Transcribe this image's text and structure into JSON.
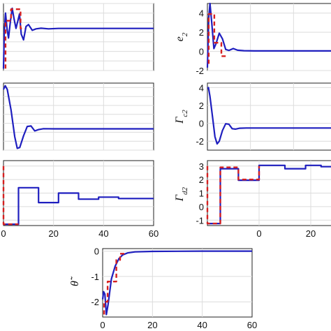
{
  "chart_data": [
    {
      "type": "line",
      "panel": "top-left",
      "xlim": [
        0,
        60
      ],
      "ylim": [
        -2,
        5
      ],
      "xticks": [],
      "yticks": [],
      "grid": true,
      "series": [
        {
          "color": "#1f1fbf",
          "style": "solid",
          "points": [
            [
              0,
              -1.8
            ],
            [
              0.3,
              2
            ],
            [
              0.8,
              4
            ],
            [
              1.4,
              2.4
            ],
            [
              2,
              1.4
            ],
            [
              2.8,
              3.2
            ],
            [
              3.5,
              4.5
            ],
            [
              4.2,
              3.4
            ],
            [
              5,
              2.4
            ],
            [
              6.4,
              3.9
            ],
            [
              7.1,
              1.8
            ],
            [
              8,
              1.2
            ],
            [
              9,
              2.6
            ],
            [
              10,
              2.8
            ],
            [
              11.5,
              2.2
            ],
            [
              13,
              2.35
            ],
            [
              15,
              2.42
            ],
            [
              18,
              2.35
            ],
            [
              22,
              2.4
            ],
            [
              30,
              2.4
            ],
            [
              40,
              2.4
            ],
            [
              50,
              2.4
            ],
            [
              60,
              2.4
            ]
          ]
        },
        {
          "color": "#d62020",
          "style": "dashed",
          "points": [
            [
              0.8,
              -1.8
            ],
            [
              0.8,
              3.2
            ],
            [
              3,
              3.2
            ],
            [
              3,
              4.4
            ],
            [
              6.8,
              4.4
            ],
            [
              6.8,
              2.4
            ],
            [
              8.5,
              2.4
            ]
          ]
        }
      ]
    },
    {
      "type": "line",
      "panel": "top-right",
      "ylabel": "e_2",
      "xlim": [
        0,
        60
      ],
      "ylim": [
        -2,
        5
      ],
      "xticks": [],
      "yticks": [
        -2,
        0,
        2,
        4
      ],
      "grid": true,
      "series": [
        {
          "color": "#1f1fbf",
          "style": "solid",
          "points": [
            [
              0,
              -1.7
            ],
            [
              0.6,
              3.5
            ],
            [
              1.2,
              5
            ],
            [
              2,
              3
            ],
            [
              3,
              0.3
            ],
            [
              4,
              0.8
            ],
            [
              5.5,
              1.9
            ],
            [
              7,
              1.3
            ],
            [
              8.5,
              0.2
            ],
            [
              10,
              0.1
            ],
            [
              12,
              0.3
            ],
            [
              14,
              0.12
            ],
            [
              17,
              0.07
            ],
            [
              22,
              0.05
            ],
            [
              30,
              0.05
            ],
            [
              45,
              0.05
            ],
            [
              60,
              0.05
            ]
          ]
        },
        {
          "color": "#d62020",
          "style": "dashed",
          "points": [
            [
              0.6,
              -1.3
            ],
            [
              0.6,
              3.9
            ],
            [
              3.2,
              3.9
            ],
            [
              3.2,
              0.9
            ],
            [
              6.5,
              0.9
            ],
            [
              6.5,
              -0.5
            ],
            [
              8.5,
              -0.5
            ]
          ]
        }
      ]
    },
    {
      "type": "line",
      "panel": "middle-left",
      "xlim": [
        0,
        60
      ],
      "ylim": [
        -3,
        4.5
      ],
      "xticks": [],
      "yticks": [],
      "grid": true,
      "series": [
        {
          "color": "#1f1fbf",
          "style": "solid",
          "points": [
            [
              0,
              3.8
            ],
            [
              0.7,
              4.2
            ],
            [
              1.5,
              3.8
            ],
            [
              3,
              1.5
            ],
            [
              4.5,
              -1.5
            ],
            [
              5.5,
              -2.8
            ],
            [
              6.5,
              -2.7
            ],
            [
              8,
              -1.4
            ],
            [
              9.5,
              -0.35
            ],
            [
              11,
              -0.3
            ],
            [
              12.5,
              -0.85
            ],
            [
              14,
              -0.7
            ],
            [
              16,
              -0.6
            ],
            [
              20,
              -0.62
            ],
            [
              30,
              -0.62
            ],
            [
              45,
              -0.62
            ],
            [
              60,
              -0.62
            ]
          ]
        }
      ]
    },
    {
      "type": "line",
      "panel": "middle-right",
      "ylabel": "Γ_c2",
      "xlim": [
        0,
        60
      ],
      "ylim": [
        -3,
        4.5
      ],
      "xticks": [],
      "yticks": [
        -2,
        0,
        2,
        4
      ],
      "grid": true,
      "series": [
        {
          "color": "#1f1fbf",
          "style": "solid",
          "points": [
            [
              0,
              3.9
            ],
            [
              0.5,
              4
            ],
            [
              1.2,
              3
            ],
            [
              2.5,
              0.5
            ],
            [
              3.5,
              -1.5
            ],
            [
              4.5,
              -2.3
            ],
            [
              5.5,
              -2
            ],
            [
              7,
              -0.8
            ],
            [
              8.5,
              -0.05
            ],
            [
              10,
              -0.1
            ],
            [
              11.5,
              -0.6
            ],
            [
              13,
              -0.65
            ],
            [
              15,
              -0.55
            ],
            [
              18,
              -0.52
            ],
            [
              25,
              -0.52
            ],
            [
              40,
              -0.52
            ],
            [
              60,
              -0.52
            ]
          ]
        }
      ]
    },
    {
      "type": "line",
      "panel": "bottom-left",
      "xlim": [
        0,
        60
      ],
      "ylim": [
        -1.4,
        3.4
      ],
      "xticks": [
        0,
        20,
        40,
        60
      ],
      "yticks": [],
      "grid": true,
      "series": [
        {
          "color": "#1f1fbf",
          "style": "solid",
          "points": [
            [
              0,
              -1.3
            ],
            [
              6,
              -1.3
            ],
            [
              6,
              1.4
            ],
            [
              14,
              1.4
            ],
            [
              14,
              0.3
            ],
            [
              22,
              0.3
            ],
            [
              22,
              1
            ],
            [
              30,
              1
            ],
            [
              30,
              0.55
            ],
            [
              38,
              0.55
            ],
            [
              38,
              0.7
            ],
            [
              46,
              0.7
            ],
            [
              46,
              0.6
            ],
            [
              60,
              0.6
            ]
          ]
        },
        {
          "color": "#d62020",
          "style": "dashed",
          "points": [
            [
              0,
              3
            ],
            [
              0,
              -1.3
            ],
            [
              6,
              -1.3
            ]
          ]
        }
      ]
    },
    {
      "type": "line",
      "panel": "bottom-right",
      "ylabel": "Γ_d2",
      "xlim": [
        -20,
        30
      ],
      "ylim": [
        -1.4,
        3.4
      ],
      "xticks": [
        0,
        20
      ],
      "yticks": [
        -1,
        0,
        1,
        2,
        3
      ],
      "grid": true,
      "series": [
        {
          "color": "#1f1fbf",
          "style": "solid",
          "points": [
            [
              -20,
              -1.25
            ],
            [
              -15,
              -1.25
            ],
            [
              -15,
              2.8
            ],
            [
              -8,
              2.8
            ],
            [
              -8,
              1.95
            ],
            [
              0,
              1.95
            ],
            [
              0,
              3.05
            ],
            [
              10,
              3.05
            ],
            [
              10,
              2.8
            ],
            [
              18,
              2.8
            ],
            [
              18,
              3.05
            ],
            [
              24,
              3.05
            ],
            [
              24,
              2.95
            ],
            [
              30,
              2.95
            ]
          ]
        },
        {
          "color": "#d62020",
          "style": "dashed",
          "points": [
            [
              -20,
              3
            ],
            [
              -20,
              -1.25
            ],
            [
              -15,
              -1.25
            ],
            [
              -15,
              2.9
            ],
            [
              -8,
              2.9
            ],
            [
              -8,
              2
            ],
            [
              0,
              2
            ],
            [
              0,
              3
            ]
          ]
        }
      ]
    },
    {
      "type": "line",
      "panel": "bottom-center",
      "ylabel": "θ̃",
      "xlim": [
        0,
        60
      ],
      "ylim": [
        -2.6,
        0.1
      ],
      "xticks": [
        0,
        20,
        40,
        60
      ],
      "yticks": [
        -2,
        -1,
        0
      ],
      "grid": true,
      "series": [
        {
          "color": "#1f1fbf",
          "style": "solid",
          "points": [
            [
              0,
              -1.9
            ],
            [
              0.4,
              -1.6
            ],
            [
              0.9,
              -1.7
            ],
            [
              1.5,
              -2.5
            ],
            [
              2.2,
              -2.1
            ],
            [
              3.5,
              -1.1
            ],
            [
              5,
              -0.6
            ],
            [
              6.5,
              -0.3
            ],
            [
              8,
              -0.15
            ],
            [
              10,
              -0.07
            ],
            [
              13,
              -0.03
            ],
            [
              20,
              -0.01
            ],
            [
              40,
              0
            ],
            [
              60,
              0
            ]
          ]
        },
        {
          "color": "#d62020",
          "style": "dashed",
          "points": [
            [
              0.6,
              -2.5
            ],
            [
              0.6,
              -2
            ],
            [
              2,
              -2
            ],
            [
              2,
              -1.2
            ],
            [
              5.5,
              -1.2
            ],
            [
              5.5,
              -0.35
            ],
            [
              7,
              -0.35
            ],
            [
              7,
              -0.1
            ],
            [
              9,
              -0.1
            ]
          ]
        }
      ]
    }
  ]
}
